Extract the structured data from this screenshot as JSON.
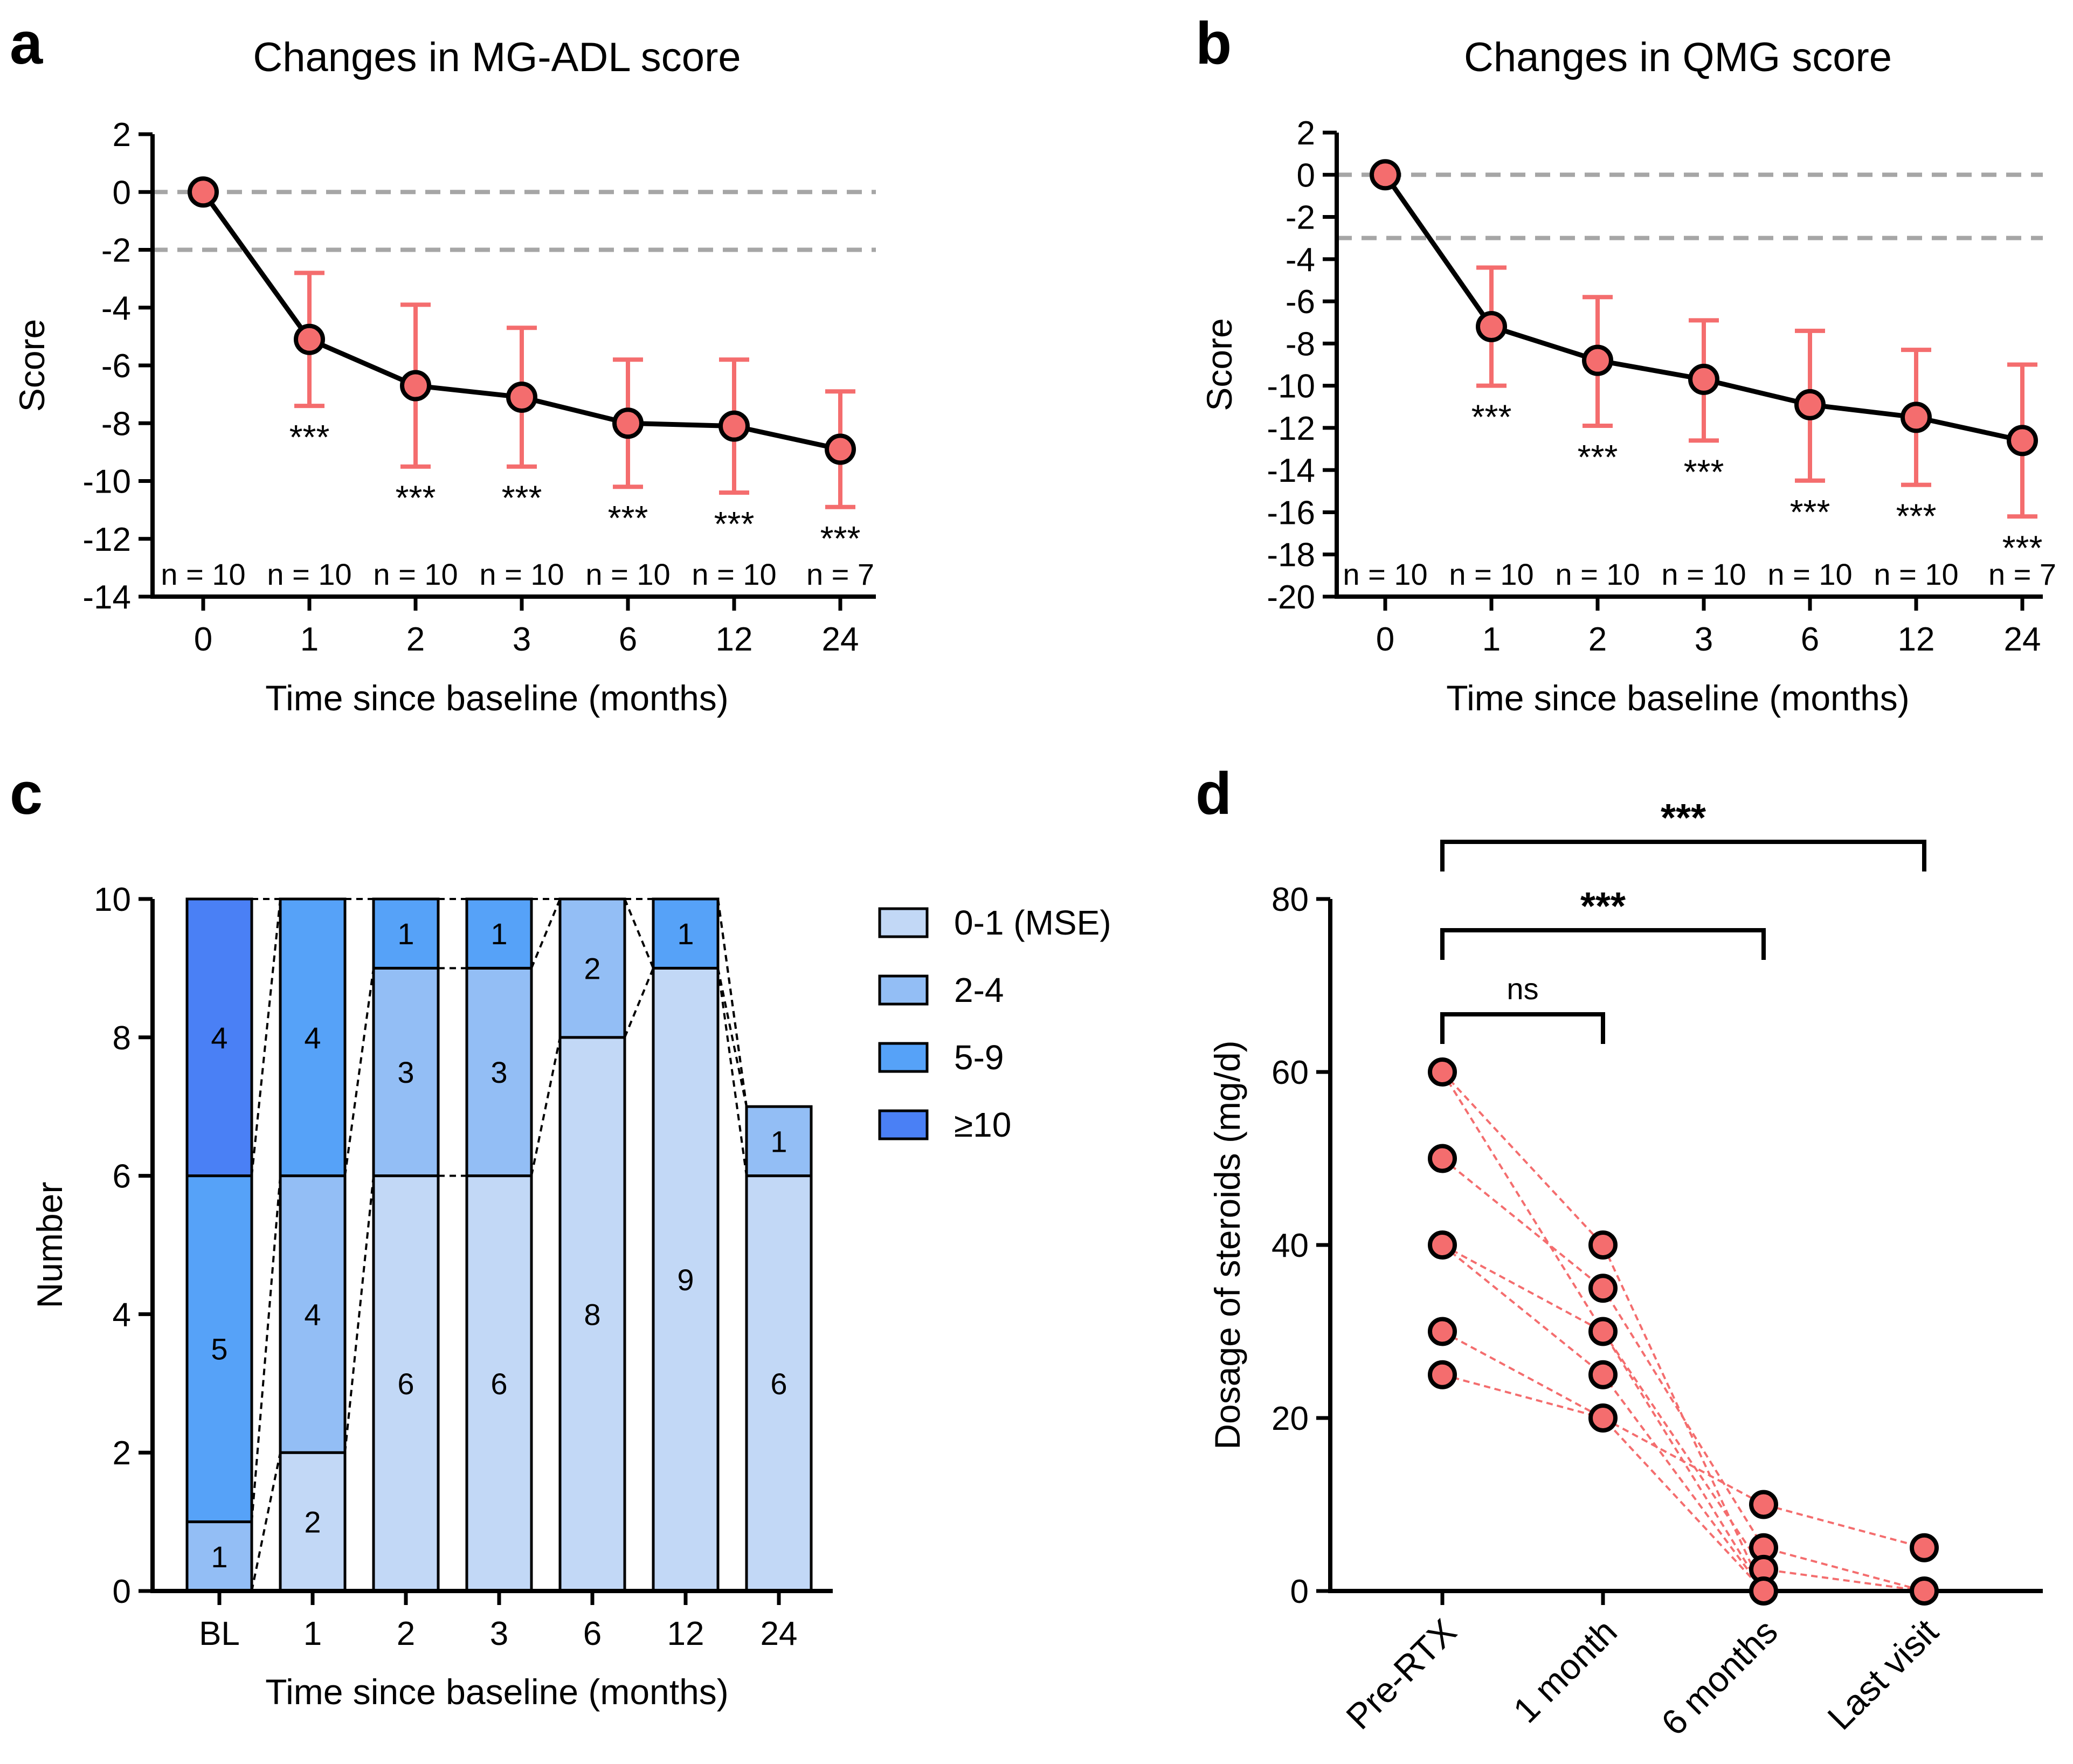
{
  "colors": {
    "marker": "#f46d6e",
    "marker_edge": "#000000",
    "errbar": "#f46d6e",
    "refline": "#a6a6a6",
    "mse": "#c2d8f6",
    "c2_4": "#93bef5",
    "c5_9": "#56a2f8",
    "c10": "#4a80f5",
    "pair_line": "#f46d6e"
  },
  "chart_data": [
    {
      "panel": "a",
      "type": "line",
      "title": "Changes in MG-ADL score",
      "xlabel": "Time since baseline (months)",
      "ylabel": "Score",
      "categories": [
        "0",
        "1",
        "2",
        "3",
        "6",
        "12",
        "24"
      ],
      "ylim": [
        -14,
        2
      ],
      "yticks": [
        "2",
        "0",
        "-2",
        "-4",
        "-6",
        "-8",
        "-10",
        "-12",
        "-14"
      ],
      "ref_lines": [
        0,
        -2
      ],
      "series": [
        {
          "name": "MG-ADL",
          "mean": [
            0,
            -5.1,
            -6.7,
            -7.1,
            -8.0,
            -8.1,
            -8.9
          ],
          "err_low": [
            0,
            -7.4,
            -9.5,
            -9.5,
            -10.2,
            -10.4,
            -10.9
          ],
          "err_high": [
            0,
            -2.8,
            -3.9,
            -4.7,
            -5.8,
            -5.8,
            -6.9
          ]
        }
      ],
      "significance": [
        "",
        "***",
        "***",
        "***",
        "***",
        "***",
        "***"
      ],
      "n_labels": [
        "n = 10",
        "n = 10",
        "n = 10",
        "n = 10",
        "n = 10",
        "n = 10",
        "n = 7"
      ]
    },
    {
      "panel": "b",
      "type": "line",
      "title": "Changes in QMG score",
      "xlabel": "Time since baseline (months)",
      "ylabel": "Score",
      "categories": [
        "0",
        "1",
        "2",
        "3",
        "6",
        "12",
        "24"
      ],
      "ylim": [
        -20,
        2
      ],
      "yticks": [
        "2",
        "0",
        "-2",
        "-4",
        "-6",
        "-8",
        "-10",
        "-12",
        "-14",
        "-16",
        "-18",
        "-20"
      ],
      "ref_lines": [
        0,
        -3
      ],
      "series": [
        {
          "name": "QMG",
          "mean": [
            0,
            -7.2,
            -8.8,
            -9.7,
            -10.9,
            -11.5,
            -12.6
          ],
          "err_low": [
            0,
            -10.0,
            -11.9,
            -12.6,
            -14.5,
            -14.7,
            -16.2
          ],
          "err_high": [
            0,
            -4.4,
            -5.8,
            -6.9,
            -7.4,
            -8.3,
            -9.0
          ]
        }
      ],
      "significance": [
        "",
        "***",
        "***",
        "***",
        "***",
        "***",
        "***"
      ],
      "n_labels": [
        "n = 10",
        "n = 10",
        "n = 10",
        "n = 10",
        "n = 10",
        "n = 10",
        "n = 7"
      ]
    },
    {
      "panel": "c",
      "type": "bar",
      "stacked": true,
      "title": "",
      "xlabel": "Time since baseline (months)",
      "ylabel": "Number",
      "categories": [
        "BL",
        "1",
        "2",
        "3",
        "6",
        "12",
        "24"
      ],
      "ylim": [
        0,
        10
      ],
      "yticks": [
        "0",
        "2",
        "4",
        "6",
        "8",
        "10"
      ],
      "legend_position": "right",
      "series": [
        {
          "name": "0-1 (MSE)",
          "values": [
            0,
            2,
            6,
            6,
            8,
            9,
            6
          ]
        },
        {
          "name": "2-4",
          "values": [
            1,
            4,
            3,
            3,
            2,
            0,
            1
          ]
        },
        {
          "name": "5-9",
          "values": [
            5,
            4,
            1,
            1,
            0,
            1,
            0
          ]
        },
        {
          "name": "≥10",
          "values": [
            4,
            0,
            0,
            0,
            0,
            0,
            0
          ]
        }
      ]
    },
    {
      "panel": "d",
      "type": "scatter",
      "title": "",
      "xlabel": "",
      "ylabel": "Dosage of steroids (mg/d)",
      "categories": [
        "Pre-RTX",
        "1 month",
        "6 months",
        "Last visit"
      ],
      "ylim": [
        0,
        80
      ],
      "yticks": [
        "0",
        "20",
        "40",
        "60",
        "80"
      ],
      "points": [
        [
          60,
          50,
          40,
          30,
          25
        ],
        [
          40,
          35,
          30,
          25,
          20
        ],
        [
          10,
          5,
          2.5,
          0
        ],
        [
          5,
          0
        ]
      ],
      "pairs": [
        [
          60,
          40,
          0,
          0
        ],
        [
          60,
          30,
          0,
          0
        ],
        [
          50,
          35,
          5,
          0
        ],
        [
          40,
          30,
          2.5,
          0
        ],
        [
          40,
          25,
          0,
          0
        ],
        [
          30,
          20,
          10,
          5
        ],
        [
          25,
          20,
          0,
          0
        ]
      ],
      "brackets": [
        {
          "from": 0,
          "to": 1,
          "label": "ns"
        },
        {
          "from": 0,
          "to": 2,
          "label": "***"
        },
        {
          "from": 0,
          "to": 3,
          "label": "***"
        }
      ]
    }
  ]
}
